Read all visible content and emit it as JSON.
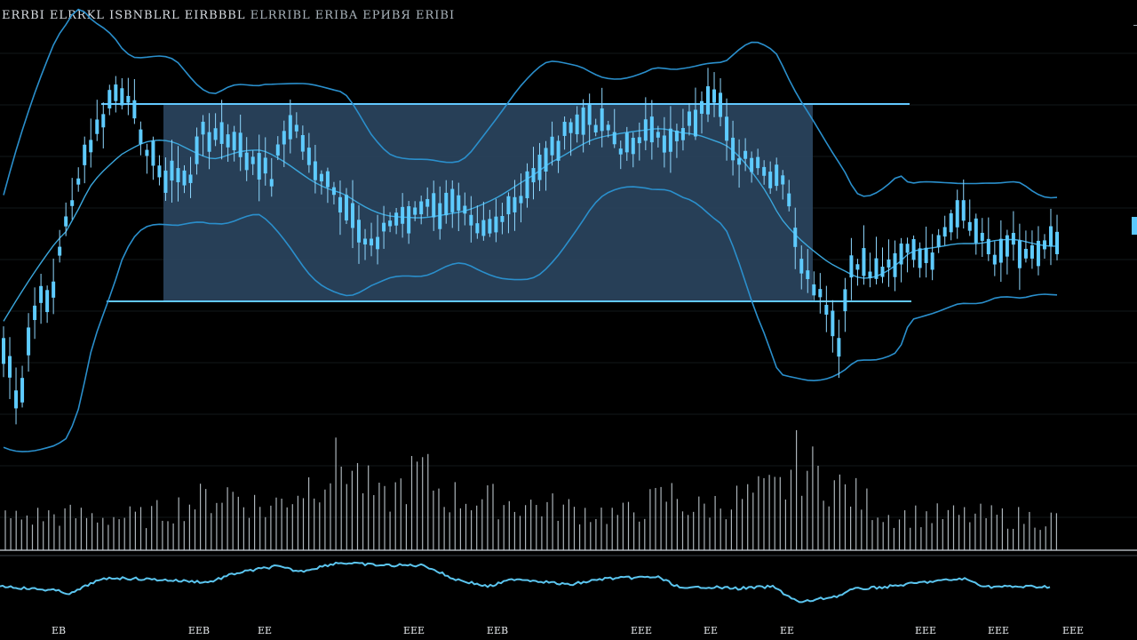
{
  "title": {
    "line1": "ЕRRBI ЕLRRKL ISBNBLRL ЕIRBBBL",
    "line2": "ЕLRRIBL ЕRIBA ЕРИВЯ ЕRIBI"
  },
  "chart_data": {
    "type": "candlestick",
    "title": "ЕRRBI ЕLRRKL ISBNBLRL ЕIRBBBL ЕLRRIBL ЕRIBA ЕРИВЯ ЕRIBI",
    "xlabel": "",
    "ylabel": "",
    "x_tick_labels": [
      "ЕВ",
      "ЕЕВ",
      "ЕЕ",
      "ЕЕЕ",
      "ЕЕВ",
      "ЕЕЕ",
      "ЕЕ",
      "ЕЕ",
      "ЕЕЕ",
      "ЕЕЕ",
      "ЕЕЕ"
    ],
    "candle_count": 170,
    "price_shape_anchors": [
      [
        0,
        395
      ],
      [
        8,
        395
      ],
      [
        14,
        428
      ],
      [
        20,
        470
      ],
      [
        24,
        452
      ],
      [
        28,
        420
      ],
      [
        35,
        360
      ],
      [
        45,
        340
      ],
      [
        60,
        325
      ],
      [
        70,
        268
      ],
      [
        75,
        250
      ],
      [
        82,
        220
      ],
      [
        92,
        190
      ],
      [
        108,
        150
      ],
      [
        120,
        125
      ],
      [
        130,
        103
      ],
      [
        142,
        113
      ],
      [
        156,
        140
      ],
      [
        168,
        170
      ],
      [
        180,
        195
      ],
      [
        196,
        198
      ],
      [
        214,
        200
      ],
      [
        228,
        150
      ],
      [
        244,
        152
      ],
      [
        262,
        160
      ],
      [
        276,
        175
      ],
      [
        292,
        190
      ],
      [
        306,
        198
      ],
      [
        322,
        140
      ],
      [
        338,
        152
      ],
      [
        348,
        178
      ],
      [
        364,
        200
      ],
      [
        382,
        230
      ],
      [
        398,
        252
      ],
      [
        408,
        268
      ],
      [
        420,
        270
      ],
      [
        436,
        255
      ],
      [
        448,
        245
      ],
      [
        464,
        240
      ],
      [
        480,
        232
      ],
      [
        498,
        240
      ],
      [
        518,
        222
      ],
      [
        538,
        250
      ],
      [
        560,
        250
      ],
      [
        586,
        228
      ],
      [
        610,
        180
      ],
      [
        630,
        160
      ],
      [
        650,
        138
      ],
      [
        670,
        136
      ],
      [
        684,
        135
      ],
      [
        700,
        174
      ],
      [
        722,
        148
      ],
      [
        745,
        160
      ],
      [
        762,
        150
      ],
      [
        786,
        130
      ],
      [
        806,
        114
      ],
      [
        830,
        174
      ],
      [
        852,
        190
      ],
      [
        870,
        205
      ],
      [
        884,
        205
      ],
      [
        896,
        275
      ],
      [
        914,
        330
      ],
      [
        930,
        345
      ],
      [
        944,
        395
      ],
      [
        958,
        300
      ],
      [
        978,
        305
      ],
      [
        1000,
        300
      ],
      [
        1020,
        275
      ],
      [
        1040,
        298
      ],
      [
        1060,
        275
      ],
      [
        1080,
        240
      ],
      [
        1100,
        262
      ],
      [
        1120,
        285
      ],
      [
        1140,
        275
      ],
      [
        1160,
        285
      ],
      [
        1185,
        265
      ]
    ],
    "volume_shape_anchors": [
      [
        0,
        40
      ],
      [
        60,
        45
      ],
      [
        160,
        42
      ],
      [
        258,
        75
      ],
      [
        300,
        52
      ],
      [
        388,
        115
      ],
      [
        430,
        60
      ],
      [
        474,
        105
      ],
      [
        500,
        70
      ],
      [
        600,
        58
      ],
      [
        700,
        45
      ],
      [
        758,
        72
      ],
      [
        780,
        52
      ],
      [
        884,
        80
      ],
      [
        894,
        115
      ],
      [
        1000,
        45
      ],
      [
        1100,
        44
      ],
      [
        1190,
        40
      ]
    ],
    "oscillator_shape_anchors": [
      [
        0,
        659
      ],
      [
        30,
        662
      ],
      [
        60,
        664
      ],
      [
        80,
        668
      ],
      [
        105,
        655
      ],
      [
        125,
        650
      ],
      [
        175,
        652
      ],
      [
        235,
        655
      ],
      [
        265,
        645
      ],
      [
        310,
        637
      ],
      [
        338,
        643
      ],
      [
        380,
        633
      ],
      [
        430,
        636
      ],
      [
        478,
        636
      ],
      [
        510,
        651
      ],
      [
        550,
        660
      ],
      [
        580,
        651
      ],
      [
        610,
        654
      ],
      [
        640,
        658
      ],
      [
        680,
        651
      ],
      [
        740,
        649
      ],
      [
        770,
        663
      ],
      [
        790,
        660
      ],
      [
        830,
        662
      ],
      [
        870,
        660
      ],
      [
        900,
        678
      ],
      [
        945,
        670
      ],
      [
        960,
        663
      ],
      [
        1000,
        660
      ],
      [
        1040,
        655
      ],
      [
        1085,
        651
      ],
      [
        1110,
        660
      ],
      [
        1150,
        660
      ],
      [
        1183,
        660
      ]
    ],
    "bollinger_bands": "upper, middle, lower bands drawn around price",
    "highlighted_range": "shaded range box with horizontal top and bottom lines",
    "grid": true,
    "legend": "none",
    "colors": {
      "background": "#000000",
      "candle": "#5ecbff",
      "band_line": "#2a8fcc",
      "middle_line": "#3aa6dc",
      "range_fill": "#2e4a66",
      "range_line": "#62c8ff",
      "volume": "#bfc8cf",
      "oscillator": "#5bc5ef",
      "grid": "#222a30"
    }
  }
}
